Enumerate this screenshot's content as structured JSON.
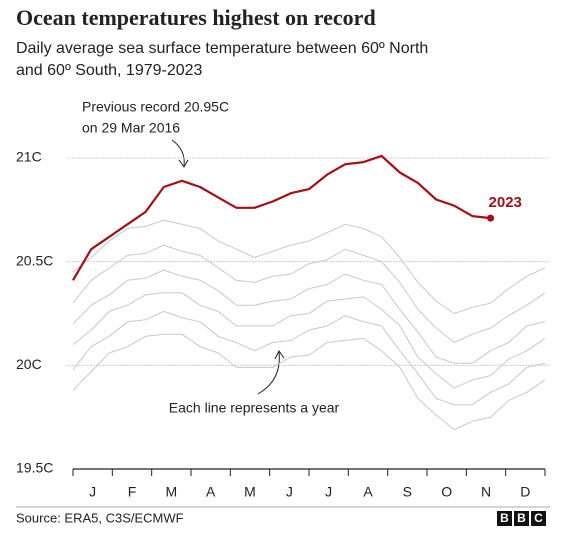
{
  "chart_data": {
    "type": "line",
    "title": "Ocean temperatures highest on record",
    "subtitle": [
      "Daily average sea surface temperature between 60º North",
      "and 60º South, 1979-2023"
    ],
    "categories": [
      "J",
      "F",
      "M",
      "A",
      "M",
      "J",
      "J",
      "A",
      "S",
      "O",
      "N",
      "D"
    ],
    "x": [
      1,
      15,
      29,
      43,
      57,
      71,
      85,
      99,
      113,
      127,
      141,
      155,
      169,
      183,
      197,
      211,
      225,
      239,
      253,
      267,
      281,
      295,
      309,
      323,
      337,
      351,
      365
    ],
    "xlim": [
      1,
      365
    ],
    "ylim": [
      19.5,
      21
    ],
    "yticks": [
      {
        "value": 19.5,
        "label": "19.5C"
      },
      {
        "value": 20,
        "label": "20C"
      },
      {
        "value": 20.5,
        "label": "20.5C"
      },
      {
        "value": 21,
        "label": "21C"
      }
    ],
    "grid": true,
    "series": [
      {
        "color": "#c8c8c8",
        "values": [
          20.45,
          20.52,
          20.6,
          20.66,
          20.67,
          20.7,
          20.68,
          20.66,
          20.6,
          20.56,
          20.52,
          20.55,
          20.58,
          20.6,
          20.64,
          20.68,
          20.66,
          20.62,
          20.52,
          20.4,
          20.31,
          20.25,
          20.28,
          20.3,
          20.37,
          20.43,
          20.47
        ]
      },
      {
        "color": "#c8c8c8",
        "values": [
          20.3,
          20.41,
          20.47,
          20.53,
          20.54,
          20.58,
          20.55,
          20.53,
          20.47,
          20.41,
          20.4,
          20.43,
          20.44,
          20.49,
          20.51,
          20.56,
          20.53,
          20.5,
          20.4,
          20.27,
          20.18,
          20.11,
          20.15,
          20.18,
          20.24,
          20.29,
          20.35
        ]
      },
      {
        "color": "#c8c8c8",
        "values": [
          20.2,
          20.29,
          20.34,
          20.41,
          20.42,
          20.46,
          20.43,
          20.41,
          20.36,
          20.29,
          20.29,
          20.31,
          20.32,
          20.37,
          20.39,
          20.44,
          20.41,
          20.39,
          20.27,
          20.16,
          20.04,
          20.01,
          20.01,
          20.07,
          20.11,
          20.19,
          20.21
        ]
      },
      {
        "color": "#c8c8c8",
        "values": [
          20.1,
          20.17,
          20.26,
          20.29,
          20.34,
          20.35,
          20.35,
          20.29,
          20.26,
          20.19,
          20.19,
          20.19,
          20.24,
          20.25,
          20.31,
          20.32,
          20.33,
          20.27,
          20.19,
          20.04,
          19.96,
          19.89,
          19.93,
          19.95,
          20.03,
          20.07,
          20.13
        ]
      },
      {
        "color": "#c8c8c8",
        "values": [
          19.98,
          20.09,
          20.14,
          20.21,
          20.22,
          20.26,
          20.23,
          20.21,
          20.14,
          20.11,
          20.07,
          20.11,
          20.12,
          20.17,
          20.19,
          20.24,
          20.21,
          20.19,
          20.07,
          19.96,
          19.84,
          19.81,
          19.81,
          19.87,
          19.91,
          19.99,
          20.01
        ]
      },
      {
        "color": "#c8c8c8",
        "values": [
          19.88,
          19.97,
          20.06,
          20.09,
          20.14,
          20.15,
          20.15,
          20.09,
          20.06,
          19.99,
          19.99,
          19.99,
          20.04,
          20.05,
          20.11,
          20.12,
          20.13,
          20.07,
          19.99,
          19.84,
          19.76,
          19.69,
          19.73,
          19.75,
          19.83,
          19.87,
          19.93
        ]
      },
      {
        "name": "2023",
        "color": "#a50f15",
        "values": [
          20.41,
          20.56,
          20.62,
          20.68,
          20.74,
          20.86,
          20.89,
          20.86,
          20.81,
          20.76,
          20.76,
          20.79,
          20.83,
          20.85,
          20.92,
          20.97,
          20.98,
          21.01,
          20.93,
          20.88,
          20.8,
          20.77,
          20.72,
          20.71,
          null,
          null,
          null
        ]
      }
    ],
    "annotations": [
      {
        "text": [
          "Previous record 20.95C",
          "on 29 Mar 2016"
        ]
      },
      {
        "text": [
          "Each line represents a year"
        ]
      }
    ],
    "source": "Source: ERA5, C3S/ECMWF",
    "logo": [
      "B",
      "B",
      "C"
    ]
  }
}
